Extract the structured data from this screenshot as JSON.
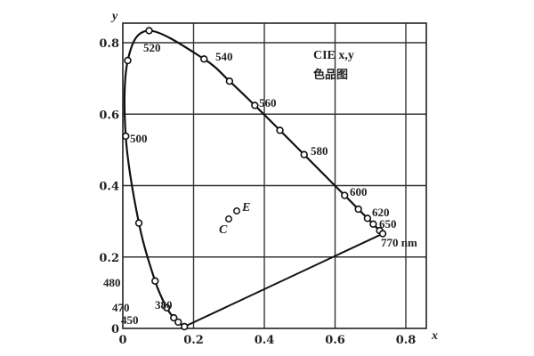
{
  "chart_data": {
    "type": "line",
    "title": "CIE x,y",
    "subtitle": "色品图",
    "xlabel": "x",
    "ylabel": "y",
    "xlim": [
      0,
      0.85
    ],
    "ylim": [
      0,
      0.85
    ],
    "xticks": [
      0,
      0.2,
      0.4,
      0.6,
      0.8
    ],
    "yticks": [
      0,
      0.2,
      0.4,
      0.6,
      0.8
    ],
    "xtick_labels": [
      "0",
      "0.2",
      "0.4",
      "0.6",
      "0.8"
    ],
    "ytick_labels": [
      "0",
      "0.2",
      "0.4",
      "0.6",
      "0.8"
    ],
    "grid": true,
    "legend": null,
    "series": [
      {
        "name": "spectral locus",
        "marked_points": [
          {
            "wavelength": 380,
            "x": 0.1741,
            "y": 0.005,
            "label": "380"
          },
          {
            "wavelength": 450,
            "x": 0.1566,
            "y": 0.0177,
            "label": "450"
          },
          {
            "wavelength": 460,
            "x": 0.144,
            "y": 0.0297,
            "label": ""
          },
          {
            "wavelength": 470,
            "x": 0.1241,
            "y": 0.0578,
            "label": "470"
          },
          {
            "wavelength": 480,
            "x": 0.0913,
            "y": 0.1327,
            "label": "480"
          },
          {
            "wavelength": 490,
            "x": 0.0454,
            "y": 0.295,
            "label": ""
          },
          {
            "wavelength": 500,
            "x": 0.0082,
            "y": 0.5384,
            "label": "500"
          },
          {
            "wavelength": 510,
            "x": 0.0139,
            "y": 0.7502,
            "label": ""
          },
          {
            "wavelength": 520,
            "x": 0.0743,
            "y": 0.8338,
            "label": "520"
          },
          {
            "wavelength": 540,
            "x": 0.2296,
            "y": 0.7543,
            "label": "540"
          },
          {
            "wavelength": 550,
            "x": 0.3016,
            "y": 0.6923,
            "label": ""
          },
          {
            "wavelength": 560,
            "x": 0.3731,
            "y": 0.6245,
            "label": "560"
          },
          {
            "wavelength": 570,
            "x": 0.4441,
            "y": 0.5547,
            "label": ""
          },
          {
            "wavelength": 580,
            "x": 0.5125,
            "y": 0.4866,
            "label": "580"
          },
          {
            "wavelength": 600,
            "x": 0.627,
            "y": 0.3725,
            "label": "600"
          },
          {
            "wavelength": 610,
            "x": 0.6658,
            "y": 0.334,
            "label": ""
          },
          {
            "wavelength": 620,
            "x": 0.6915,
            "y": 0.3083,
            "label": "620"
          },
          {
            "wavelength": 630,
            "x": 0.7079,
            "y": 0.292,
            "label": ""
          },
          {
            "wavelength": 650,
            "x": 0.726,
            "y": 0.274,
            "label": "650"
          },
          {
            "wavelength": 770,
            "x": 0.7347,
            "y": 0.2653,
            "label": "770 nm"
          }
        ]
      },
      {
        "name": "purple line",
        "points": [
          {
            "x": 0.1741,
            "y": 0.005
          },
          {
            "x": 0.7347,
            "y": 0.2653
          }
        ]
      }
    ],
    "annotations": [
      {
        "label": "C",
        "x": 0.3101,
        "y": 0.3162
      },
      {
        "label": "E",
        "x": 0.3333,
        "y": 0.3333
      }
    ]
  }
}
